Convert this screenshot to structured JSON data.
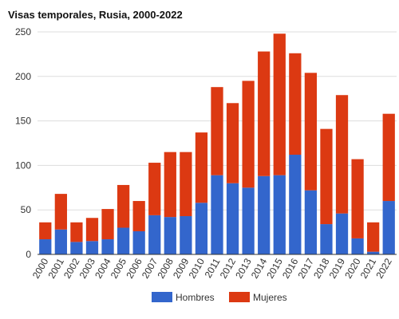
{
  "chart_data": {
    "type": "bar",
    "stacked": true,
    "title": "Visas temporales, Rusia, 2000-2022",
    "xlabel": "",
    "ylabel": "",
    "ylim": [
      0,
      250
    ],
    "yticks": [
      0,
      50,
      100,
      150,
      200,
      250
    ],
    "grid": true,
    "legend_position": "bottom",
    "categories": [
      "2000",
      "2001",
      "2002",
      "2003",
      "2004",
      "2005",
      "2006",
      "2007",
      "2008",
      "2009",
      "2010",
      "2011",
      "2012",
      "2013",
      "2014",
      "2015",
      "2016",
      "2017",
      "2018",
      "2019",
      "2020",
      "2021",
      "2022"
    ],
    "series": [
      {
        "name": "Hombres",
        "color": "#3366cc",
        "values": [
          17,
          28,
          14,
          15,
          17,
          30,
          26,
          44,
          42,
          43,
          58,
          89,
          80,
          75,
          88,
          89,
          112,
          72,
          34,
          46,
          18,
          3,
          60
        ]
      },
      {
        "name": "Mujeres",
        "color": "#dc3912",
        "values": [
          19,
          40,
          22,
          26,
          34,
          48,
          34,
          59,
          73,
          72,
          79,
          99,
          90,
          120,
          140,
          159,
          114,
          132,
          107,
          133,
          89,
          33,
          98
        ]
      }
    ]
  }
}
